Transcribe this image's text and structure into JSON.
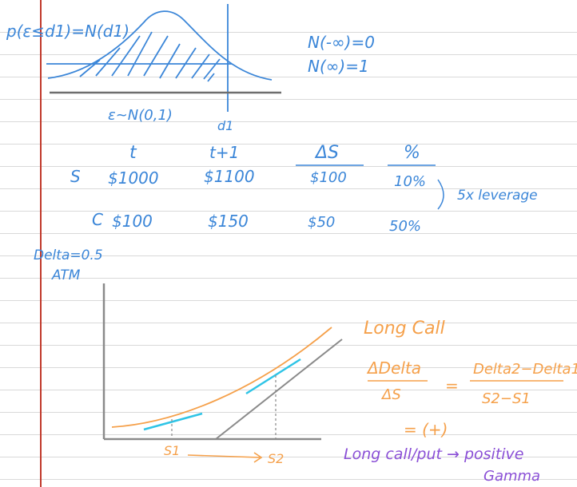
{
  "notes": {
    "formula": "p(ε≤d1)=N(d1)",
    "dist": "ε~N(0,1)",
    "d1": "d1",
    "n_neg_inf": "N(-∞)=0",
    "n_inf": "N(∞)=1",
    "table": {
      "headers": [
        "t",
        "t+1",
        "ΔS",
        "%"
      ],
      "rows": [
        {
          "label": "S",
          "values": [
            "$1000",
            "$1100",
            "$100",
            "10%"
          ]
        },
        {
          "label": "C",
          "values": [
            "$100",
            "$150",
            "$50",
            "50%"
          ]
        }
      ],
      "leverage_note": "5x leverage"
    },
    "delta_note_1": "Delta=0.5",
    "delta_note_2": "ATM",
    "long_call": "Long Call",
    "delta_num": "ΔDelta",
    "delta_den": "ΔS",
    "eq_sign": "=",
    "delta_frac_num": "Delta2−Delta1",
    "delta_frac_den": "S2−S1",
    "equals_positive": "= (+)",
    "s1": "S1",
    "s2": "S2",
    "gamma_line_1": "Long call/put → positive",
    "gamma_line_2": "Gamma"
  },
  "colors": {
    "blue_ink": "#3b86d8",
    "orange_ink": "#f5a04a",
    "purple_ink": "#8a4fd6",
    "cyan_ink": "#2ec4e6",
    "gray_ink": "#8a8a8a",
    "margin_red": "#c0392b"
  }
}
